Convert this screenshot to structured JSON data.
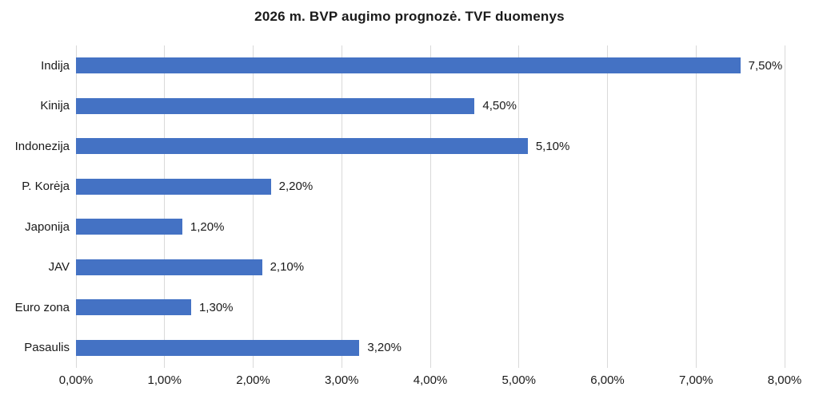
{
  "chart_data": {
    "type": "bar",
    "orientation": "horizontal",
    "title": "2026 m. BVP augimo prognozė. TVF duomenys",
    "categories": [
      "Indija",
      "Kinija",
      "Indonezija",
      "P. Korėja",
      "Japonija",
      "JAV",
      "Euro zona",
      "Pasaulis"
    ],
    "values": [
      7.5,
      4.5,
      5.1,
      2.2,
      1.2,
      2.1,
      1.3,
      3.2
    ],
    "value_labels": [
      "7,50%",
      "4,50%",
      "5,10%",
      "2,20%",
      "1,20%",
      "2,10%",
      "1,30%",
      "3,20%"
    ],
    "x_tick_labels": [
      "0,00%",
      "1,00%",
      "2,00%",
      "3,00%",
      "4,00%",
      "5,00%",
      "6,00%",
      "7,00%",
      "8,00%"
    ],
    "xlim": [
      0,
      8
    ],
    "grid": true,
    "legend": false,
    "bar_color": "#4472C4",
    "gridline_color": "#D9D9D9",
    "text_color": "#1A1A1A",
    "background_color": "#FFFFFF"
  }
}
